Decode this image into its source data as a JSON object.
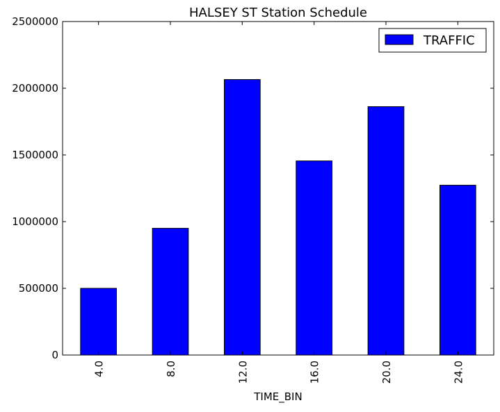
{
  "chart_data": {
    "type": "bar",
    "title": "HALSEY ST Station Schedule",
    "xlabel": "TIME_BIN",
    "ylabel": "",
    "categories": [
      "4.0",
      "8.0",
      "12.0",
      "16.0",
      "20.0",
      "24.0"
    ],
    "series": [
      {
        "name": "TRAFFIC",
        "values": [
          500000,
          950000,
          2065000,
          1455000,
          1862000,
          1273000
        ],
        "color": "#0000ff"
      }
    ],
    "ylim": [
      0,
      2500000
    ],
    "yticks": [
      "0",
      "500000",
      "1000000",
      "1500000",
      "2000000",
      "2500000"
    ],
    "legend": "top-right",
    "grid": false,
    "x_tick_rotation": "vertical"
  }
}
